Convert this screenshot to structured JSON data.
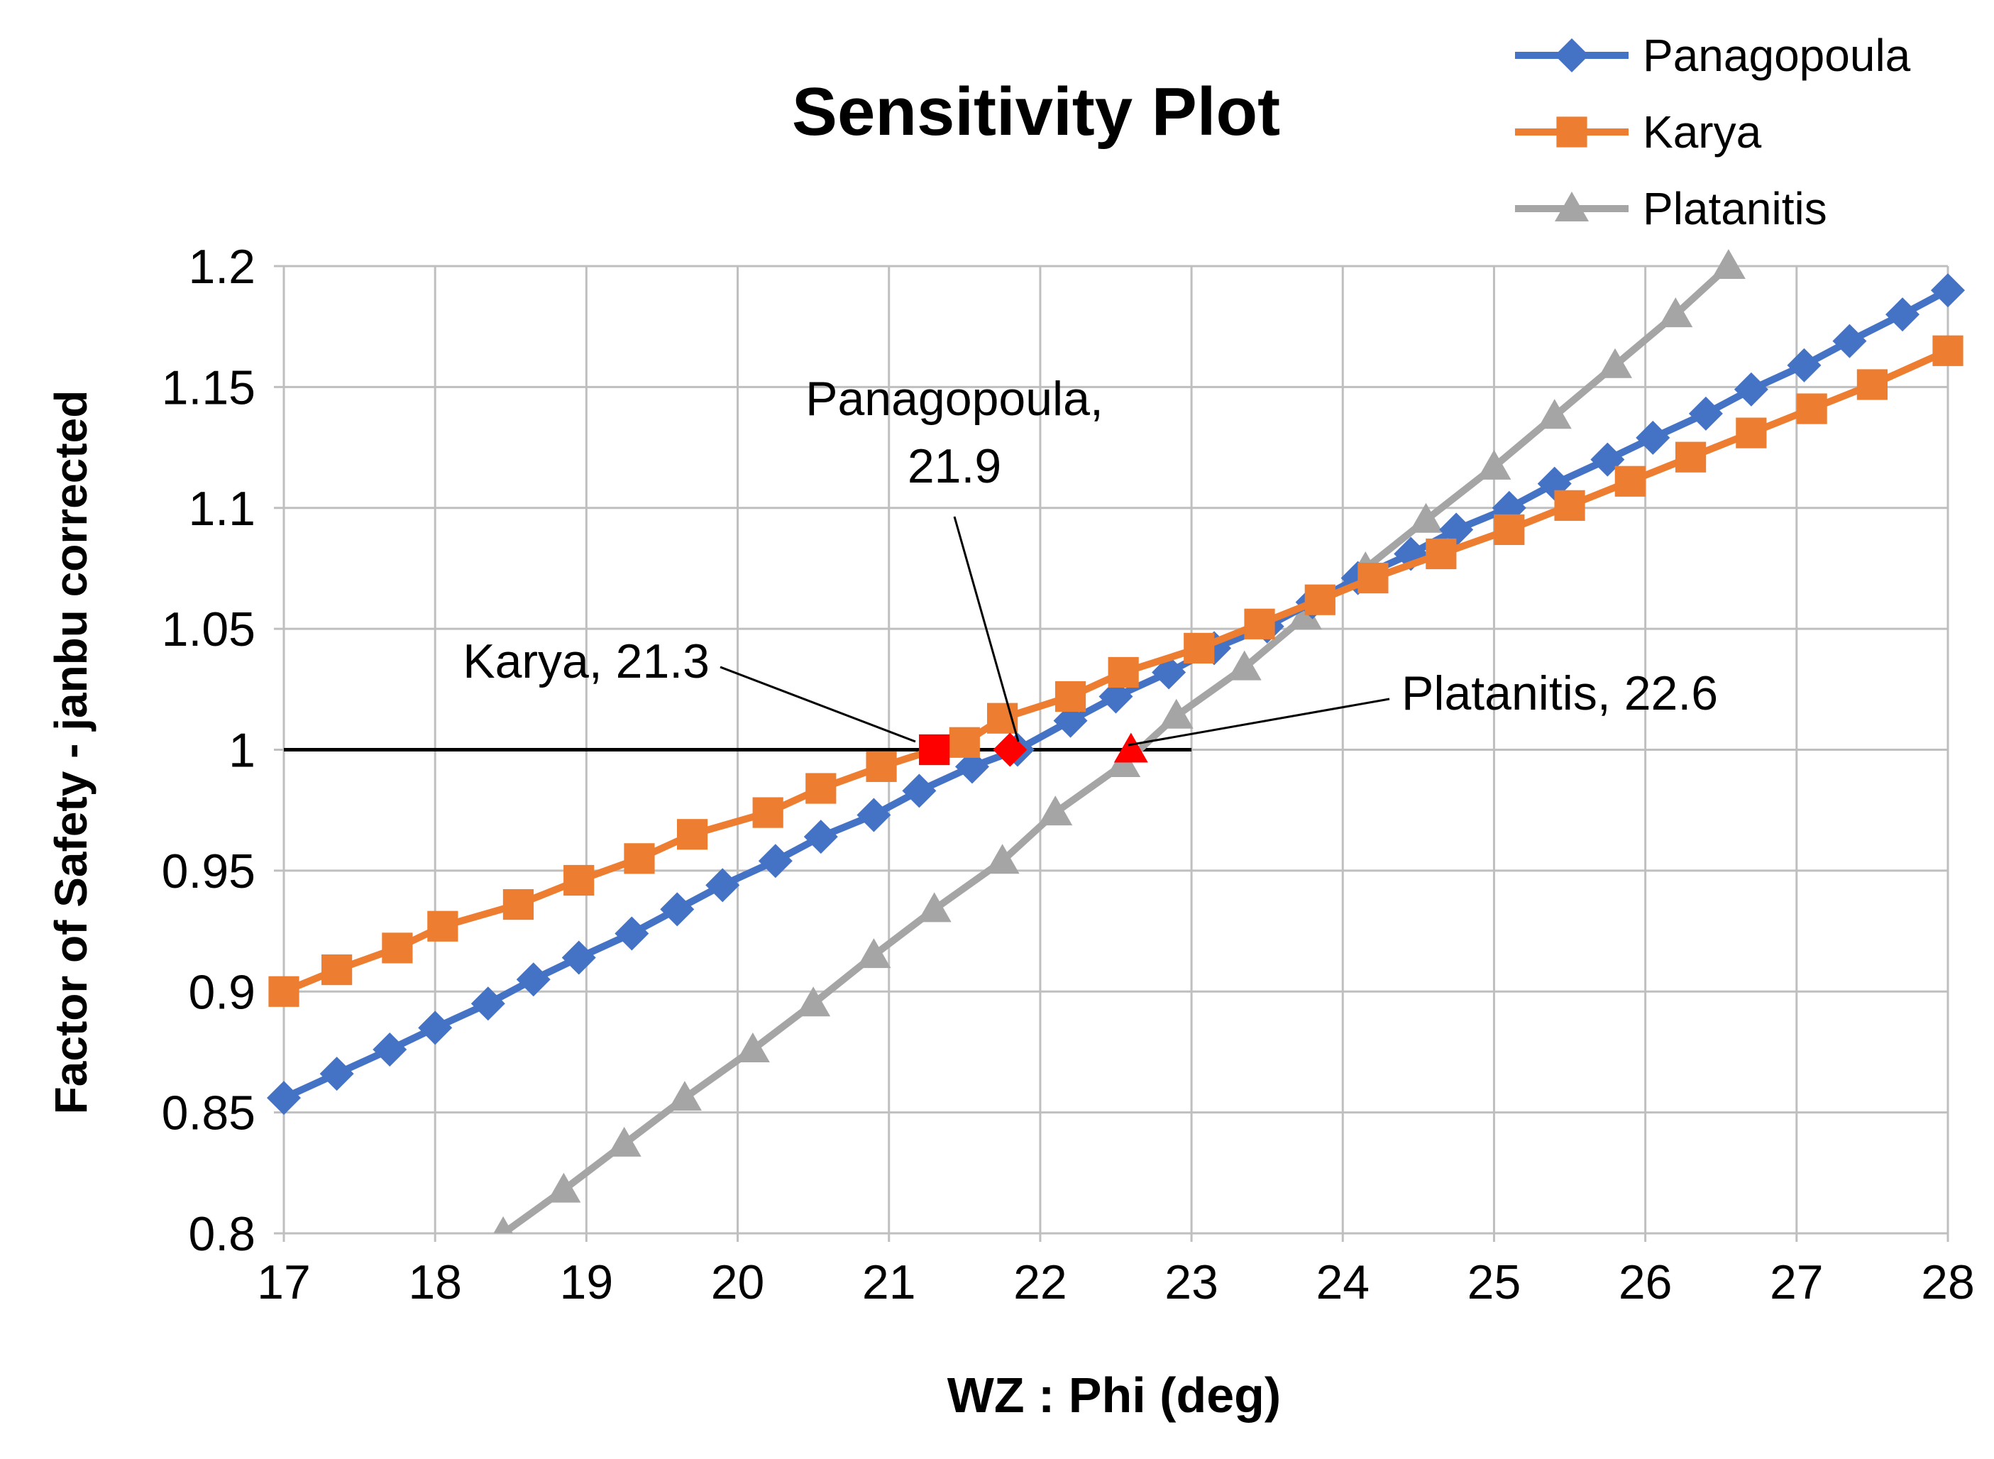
{
  "chart_data": {
    "type": "line",
    "title": "Sensitivity Plot",
    "xlabel": "WZ : Phi (deg)",
    "ylabel": "Factor of Safety - janbu corrected",
    "xlim": [
      17,
      28
    ],
    "ylim": [
      0.8,
      1.2
    ],
    "x_ticks": [
      "17",
      "18",
      "19",
      "20",
      "21",
      "22",
      "23",
      "24",
      "25",
      "26",
      "27",
      "28"
    ],
    "y_ticks": [
      "0.8",
      "0.85",
      "0.9",
      "0.95",
      "1",
      "1.05",
      "1.1",
      "1.15",
      "1.2"
    ],
    "grid": true,
    "legend_position": "top-right",
    "reference_line": {
      "y": 1.0,
      "x_range": [
        17,
        23.0
      ],
      "color": "#000000"
    },
    "series": [
      {
        "name": "Panagopoula",
        "color": "#4472C4",
        "marker": "diamond",
        "x": [
          17,
          17.35,
          17.7,
          18,
          18.35,
          18.65,
          18.95,
          19.3,
          19.6,
          19.9,
          20.25,
          20.55,
          20.9,
          21.2,
          21.55,
          21.85,
          22.2,
          22.5,
          22.85,
          23.15,
          23.5,
          23.8,
          24.1,
          24.45,
          24.75,
          25.1,
          25.4,
          25.75,
          26.05,
          26.4,
          26.7,
          27.05,
          27.35,
          27.7,
          28
        ],
        "y": [
          0.856,
          0.866,
          0.876,
          0.885,
          0.895,
          0.905,
          0.914,
          0.924,
          0.934,
          0.944,
          0.954,
          0.964,
          0.973,
          0.983,
          0.993,
          1.0,
          1.012,
          1.022,
          1.032,
          1.042,
          1.051,
          1.061,
          1.071,
          1.081,
          1.091,
          1.1,
          1.11,
          1.12,
          1.129,
          1.139,
          1.149,
          1.159,
          1.169,
          1.18,
          1.19
        ]
      },
      {
        "name": "Karya",
        "color": "#ED7D31",
        "marker": "square",
        "x": [
          17,
          17.35,
          17.75,
          18.05,
          18.55,
          18.95,
          19.35,
          19.7,
          20.2,
          20.55,
          20.95,
          21.3,
          21.5,
          21.75,
          22.2,
          22.55,
          23.05,
          23.45,
          23.85,
          24.2,
          24.65,
          25.1,
          25.5,
          25.9,
          26.3,
          26.7,
          27.1,
          27.5,
          28
        ],
        "y": [
          0.9,
          0.909,
          0.918,
          0.927,
          0.936,
          0.946,
          0.955,
          0.965,
          0.974,
          0.984,
          0.993,
          1.0,
          1.003,
          1.013,
          1.022,
          1.032,
          1.042,
          1.052,
          1.062,
          1.071,
          1.081,
          1.091,
          1.101,
          1.111,
          1.121,
          1.131,
          1.141,
          1.151,
          1.165
        ]
      },
      {
        "name": "Platanitis",
        "color": "#A5A5A5",
        "marker": "triangle",
        "x": [
          18.45,
          18.85,
          19.25,
          19.65,
          20.1,
          20.5,
          20.9,
          21.3,
          21.75,
          22.1,
          22.55,
          22.9,
          23.35,
          23.75,
          24.15,
          24.55,
          25.0,
          25.4,
          25.8,
          26.2,
          26.55
        ],
        "y": [
          0.8,
          0.818,
          0.837,
          0.856,
          0.876,
          0.895,
          0.915,
          0.934,
          0.954,
          0.974,
          0.994,
          1.014,
          1.034,
          1.055,
          1.075,
          1.095,
          1.117,
          1.138,
          1.159,
          1.18,
          1.2
        ]
      }
    ],
    "highlighted_points": [
      {
        "series": "Karya",
        "x": 21.3,
        "y": 1.0,
        "marker": "square",
        "color": "#FF0000"
      },
      {
        "series": "Panagopoula",
        "x": 21.8,
        "y": 1.0,
        "marker": "diamond",
        "color": "#FF0000"
      },
      {
        "series": "Platanitis",
        "x": 22.6,
        "y": 1.0,
        "marker": "triangle",
        "color": "#FF0000"
      }
    ],
    "annotations": [
      {
        "lines": [
          "Karya, 21.3"
        ],
        "target": [
          21.3,
          1.0
        ]
      },
      {
        "lines": [
          "Panagopoula,",
          "21.9"
        ],
        "target": [
          21.9,
          1.0
        ]
      },
      {
        "lines": [
          "Platanitis, 22.6"
        ],
        "target": [
          22.6,
          1.0
        ]
      }
    ]
  }
}
